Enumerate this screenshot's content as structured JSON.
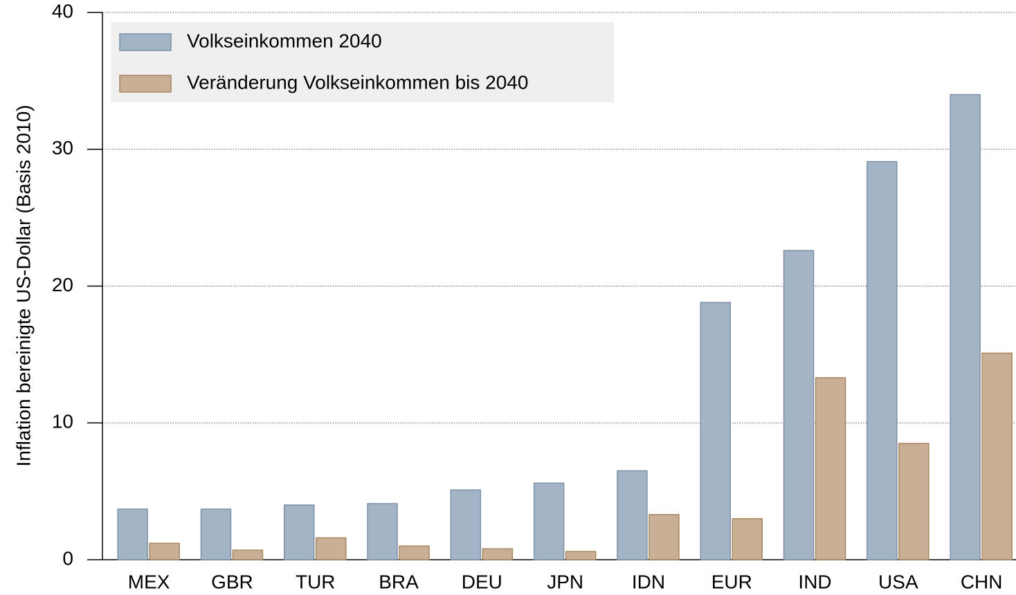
{
  "chart_data": {
    "type": "bar",
    "y_label": "Inflation bereinigte US-Dollar (Basis 2010)",
    "categories": [
      "MEX",
      "GBR",
      "TUR",
      "BRA",
      "DEU",
      "JPN",
      "IDN",
      "EUR",
      "IND",
      "USA",
      "CHN"
    ],
    "series": [
      {
        "name": "Volkseinkommen 2040",
        "color": "#a3b4c6",
        "values": [
          3.7,
          3.7,
          4.0,
          4.1,
          5.1,
          5.6,
          6.5,
          18.8,
          22.6,
          29.1,
          34.0
        ]
      },
      {
        "name": "Veränderung Volkseinkommen bis 2040",
        "color": "#c8af95",
        "values": [
          1.2,
          0.7,
          1.6,
          1.0,
          0.8,
          0.6,
          3.3,
          3.0,
          13.3,
          8.5,
          15.1
        ]
      }
    ],
    "ylim": [
      0,
      40
    ],
    "yticks": [
      0,
      10,
      20,
      30,
      40
    ],
    "grid": true,
    "legend": "top-left"
  }
}
